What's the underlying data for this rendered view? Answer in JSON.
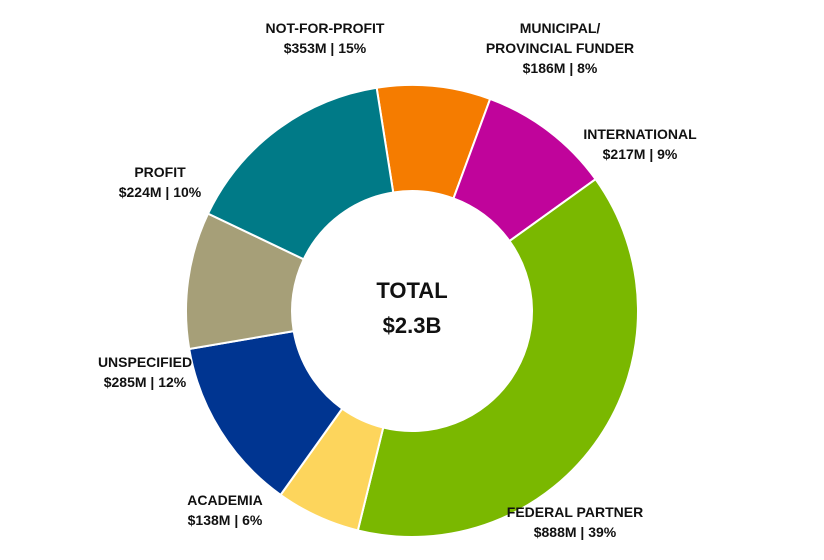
{
  "chart_data": {
    "type": "pie",
    "donut": true,
    "center_label": "TOTAL",
    "center_value": "$2.3B",
    "slices": [
      {
        "id": "municipal",
        "label_lines": [
          "MUNICIPAL/",
          "PROVINCIAL FUNDER"
        ],
        "amount": "$186M",
        "percent_text": "8%",
        "value": 186,
        "color": "#F57C00"
      },
      {
        "id": "international",
        "label_lines": [
          "INTERNATIONAL"
        ],
        "amount": "$217M",
        "percent_text": "9%",
        "value": 217,
        "color": "#C0049B"
      },
      {
        "id": "federal",
        "label_lines": [
          "FEDERAL PARTNER"
        ],
        "amount": "$888M",
        "percent_text": "39%",
        "value": 888,
        "color": "#7AB800"
      },
      {
        "id": "academia",
        "label_lines": [
          "ACADEMIA"
        ],
        "amount": "$138M",
        "percent_text": "6%",
        "value": 138,
        "color": "#FDD55C"
      },
      {
        "id": "unspecified",
        "label_lines": [
          "UNSPECIFIED"
        ],
        "amount": "$285M",
        "percent_text": "12%",
        "value": 285,
        "color": "#003591"
      },
      {
        "id": "profit",
        "label_lines": [
          "PROFIT"
        ],
        "amount": "$224M",
        "percent_text": "10%",
        "value": 224,
        "color": "#A69F78"
      },
      {
        "id": "not-for-profit",
        "label_lines": [
          "NOT-FOR-PROFIT"
        ],
        "amount": "$353M",
        "percent_text": "15%",
        "value": 353,
        "color": "#007A87"
      }
    ]
  }
}
